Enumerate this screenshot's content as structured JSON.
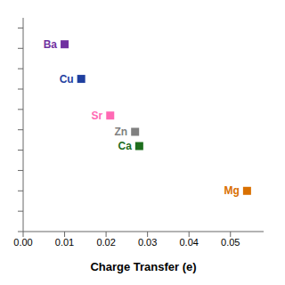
{
  "chart_data": {
    "type": "scatter",
    "x_label": "Charge Transfer (e)",
    "x": [
      0.01,
      0.014,
      0.021,
      0.027,
      0.028,
      0.054
    ],
    "values": [
      0.92,
      0.75,
      0.57,
      0.49,
      0.42,
      0.2
    ],
    "labels": [
      "Ba",
      "Cu",
      "Sr",
      "Zn",
      "Ca",
      "Mg"
    ],
    "colors": [
      "#7030A0",
      "#1F3F9F",
      "#FF69B4",
      "#808080",
      "#1E6E1E",
      "#D97000"
    ],
    "marker": "square",
    "xlim": [
      0.0,
      0.058
    ],
    "ylim": [
      0.0,
      1.05
    ],
    "xticks": [
      {
        "value": 0.0,
        "label": "0.00"
      },
      {
        "value": 0.01,
        "label": "0.01"
      },
      {
        "value": 0.02,
        "label": "0.02"
      },
      {
        "value": 0.03,
        "label": "0.03"
      },
      {
        "value": 0.04,
        "label": "0.04"
      },
      {
        "value": 0.05,
        "label": "0.05"
      }
    ],
    "yticks": [
      0,
      0.1,
      0.2,
      0.3,
      0.4,
      0.5,
      0.6,
      0.7,
      0.8,
      0.9,
      1.0
    ],
    "tick_labels": "x",
    "grid": false
  }
}
